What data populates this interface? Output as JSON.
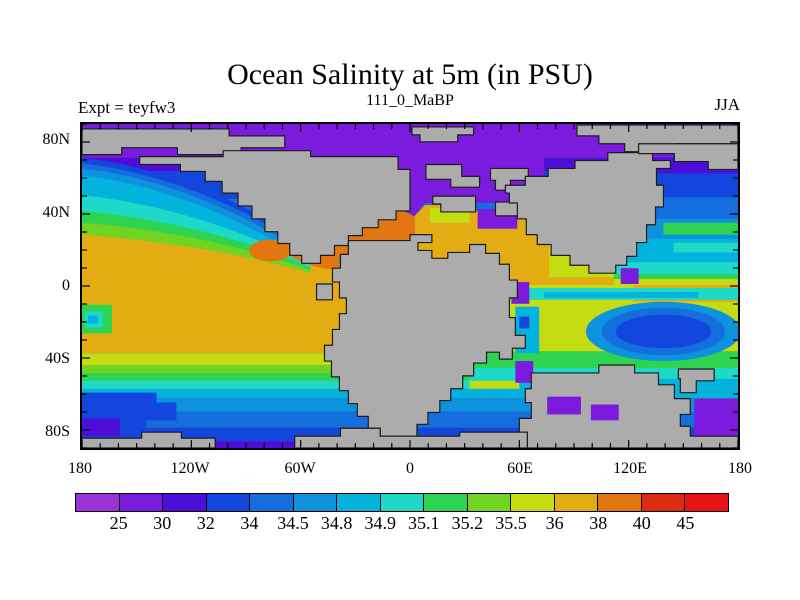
{
  "header": {
    "title": "Ocean Salinity at 5m (in PSU)",
    "subtitle": "111_0_MaBP",
    "experiment_label": "Expt = teyfw3",
    "season_label": "JJA"
  },
  "map": {
    "lat_tick_labels": [
      {
        "label": "80N",
        "deg": 80
      },
      {
        "label": "40N",
        "deg": 40
      },
      {
        "label": "0",
        "deg": 0
      },
      {
        "label": "40S",
        "deg": -40
      },
      {
        "label": "80S",
        "deg": -80
      }
    ],
    "lon_tick_labels": [
      {
        "label": "180",
        "deg": -180
      },
      {
        "label": "120W",
        "deg": -120
      },
      {
        "label": "60W",
        "deg": -60
      },
      {
        "label": "0",
        "deg": 0
      },
      {
        "label": "60E",
        "deg": 60
      },
      {
        "label": "120E",
        "deg": 120
      },
      {
        "label": "180",
        "deg": 180
      }
    ],
    "land_color": "#ACACAC"
  },
  "colorbar": {
    "boundary_labels": [
      "25",
      "30",
      "32",
      "34",
      "34.5",
      "34.8",
      "34.9",
      "35.1",
      "35.2",
      "35.5",
      "36",
      "38",
      "40",
      "45"
    ],
    "segment_colors": [
      "#9A33D6",
      "#7A1BDD",
      "#4E0EDA",
      "#1246DD",
      "#156EDD",
      "#0D92DD",
      "#04B2DE",
      "#1ED8C8",
      "#2ED352",
      "#71D322",
      "#C6DC12",
      "#E2AC12",
      "#E27712",
      "#DC2D10",
      "#E81313"
    ]
  },
  "chart_data": {
    "type": "heatmap",
    "subtype": "filled-contour world map (paleogeography)",
    "title": "Ocean Salinity at 5m (in PSU)",
    "subtitle": "111_0_MaBP",
    "annotations": [
      "Expt = teyfw3",
      "JJA"
    ],
    "variable": "Ocean Salinity",
    "depth": "5m",
    "units": "PSU",
    "colorbar_levels": [
      25,
      30,
      32,
      34,
      34.5,
      34.8,
      34.9,
      35.1,
      35.2,
      35.5,
      36,
      38,
      40,
      45
    ],
    "colorbar_colors": [
      "#9A33D6",
      "#7A1BDD",
      "#4E0EDA",
      "#1246DD",
      "#156EDD",
      "#0D92DD",
      "#04B2DE",
      "#1ED8C8",
      "#2ED352",
      "#71D322",
      "#C6DC12",
      "#E2AC12",
      "#E27712",
      "#DC2D10",
      "#E81313"
    ],
    "x_axis": {
      "tick_labels": [
        "180",
        "120W",
        "60W",
        "0",
        "60E",
        "120E",
        "180"
      ],
      "range_deg": [
        -180,
        180
      ],
      "minor_tick_deg": 10
    },
    "y_axis": {
      "tick_labels": [
        "80N",
        "40N",
        "0",
        "40S",
        "80S"
      ],
      "range_deg": [
        -90,
        90
      ],
      "minor_tick_deg": 10
    },
    "legend_position": "bottom",
    "land_fill": "#ACACAC"
  }
}
